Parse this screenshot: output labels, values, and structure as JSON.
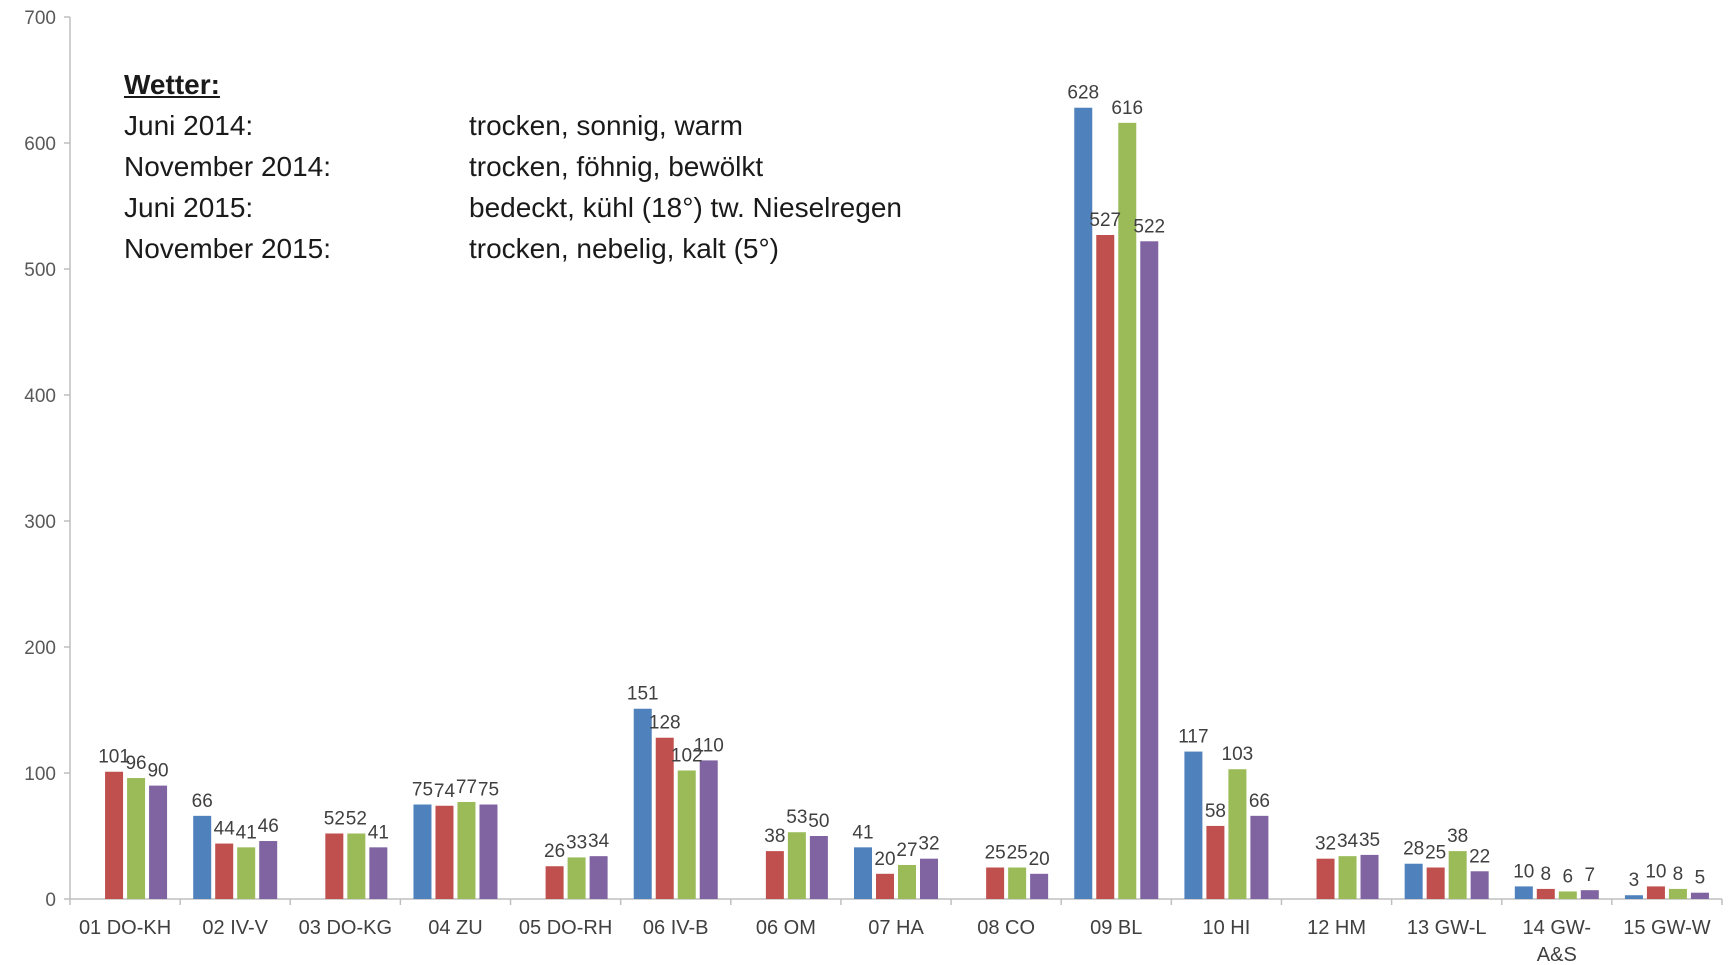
{
  "chart_data": {
    "type": "bar",
    "categories": [
      "01 DO-KH",
      "02 IV-V",
      "03 DO-KG",
      "04 ZU",
      "05 DO-RH",
      "06 IV-B",
      "06 OM",
      "07 HA",
      "08 CO",
      "09 BL",
      "10 HI",
      "12 HM",
      "13 GW-L",
      "14 GW-A&S",
      "15 GW-W"
    ],
    "category_lines": [
      [
        "01 DO-KH"
      ],
      [
        "02 IV-V"
      ],
      [
        "03 DO-KG"
      ],
      [
        "04 ZU"
      ],
      [
        "05 DO-RH"
      ],
      [
        "06 IV-B"
      ],
      [
        "06 OM"
      ],
      [
        "07 HA"
      ],
      [
        "08 CO"
      ],
      [
        "09 BL"
      ],
      [
        "10 HI"
      ],
      [
        "12 HM"
      ],
      [
        "13 GW-L"
      ],
      [
        "14 GW-",
        "A&S"
      ],
      [
        "15 GW-W"
      ]
    ],
    "series": [
      {
        "color": "#4F81BD",
        "values": [
          null,
          66,
          null,
          75,
          null,
          151,
          null,
          41,
          null,
          628,
          117,
          null,
          28,
          10,
          3
        ]
      },
      {
        "color": "#C0504D",
        "values": [
          101,
          44,
          52,
          74,
          26,
          128,
          38,
          20,
          25,
          527,
          58,
          32,
          25,
          8,
          10
        ]
      },
      {
        "color": "#9BBB59",
        "values": [
          96,
          41,
          52,
          77,
          33,
          102,
          53,
          27,
          25,
          616,
          103,
          34,
          38,
          6,
          8
        ]
      },
      {
        "color": "#8064A2",
        "values": [
          90,
          46,
          41,
          75,
          34,
          110,
          50,
          32,
          20,
          522,
          66,
          35,
          22,
          7,
          5
        ]
      }
    ],
    "ylim": [
      0,
      700
    ],
    "yticks": [
      0,
      100,
      200,
      300,
      400,
      500,
      600,
      700
    ],
    "grid": false,
    "legend": "none",
    "data_labels": true
  },
  "weather_note": {
    "heading": "Wetter:",
    "rows": [
      {
        "period": "Juni 2014:",
        "description": "trocken, sonnig, warm"
      },
      {
        "period": "November 2014:",
        "description": "trocken, föhnig, bewölkt"
      },
      {
        "period": "Juni 2015:",
        "description": "bedeckt, kühl  (18°)  tw. Nieselregen"
      },
      {
        "period": "November 2015:",
        "description": "trocken, nebelig, kalt (5°)"
      }
    ]
  }
}
